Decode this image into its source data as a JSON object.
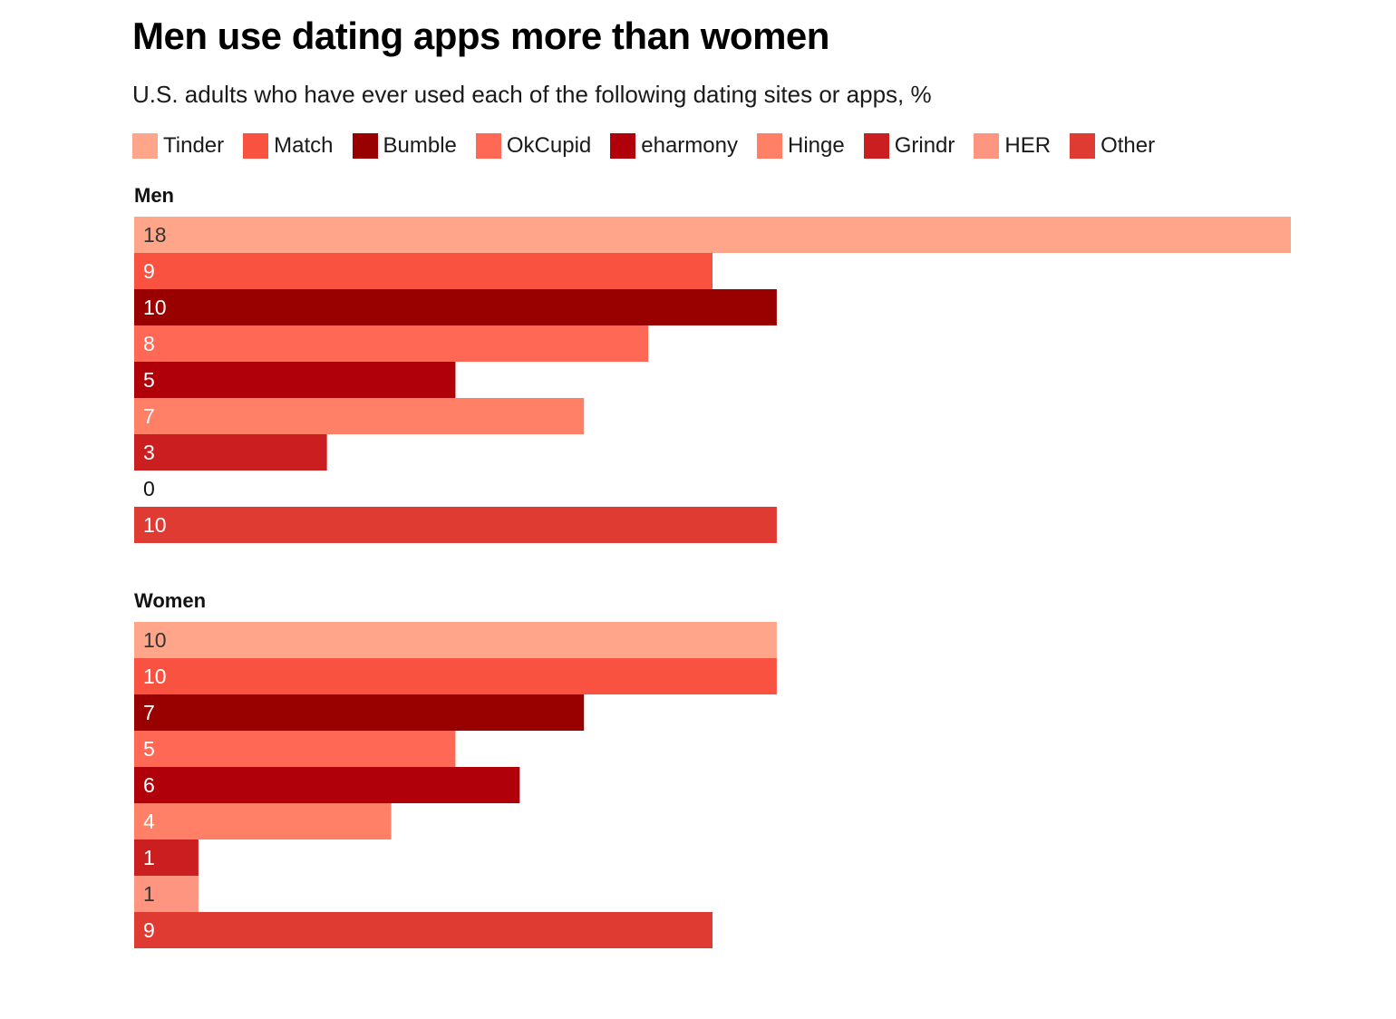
{
  "chart_data": {
    "type": "bar",
    "orientation": "horizontal",
    "title": "Men use dating apps more than women",
    "subtitle": "U.S. adults who have ever used each of the following dating sites or apps, %",
    "categories": [
      "Tinder",
      "Match",
      "Bumble",
      "OkCupid",
      "eharmony",
      "Hinge",
      "Grindr",
      "HER",
      "Other"
    ],
    "colors": [
      "#ffa68a",
      "#fa5241",
      "#990000",
      "#fe6855",
      "#b0000a",
      "#ff8066",
      "#cb1e21",
      "#fe9580",
      "#e03b32"
    ],
    "groups": [
      {
        "name": "Men",
        "values": [
          18,
          9,
          10,
          8,
          5,
          7,
          3,
          0,
          10
        ]
      },
      {
        "name": "Women",
        "values": [
          10,
          10,
          7,
          5,
          6,
          4,
          1,
          1,
          9
        ]
      }
    ],
    "xlim": [
      0,
      18
    ],
    "legend_position": "top",
    "grid": false
  }
}
